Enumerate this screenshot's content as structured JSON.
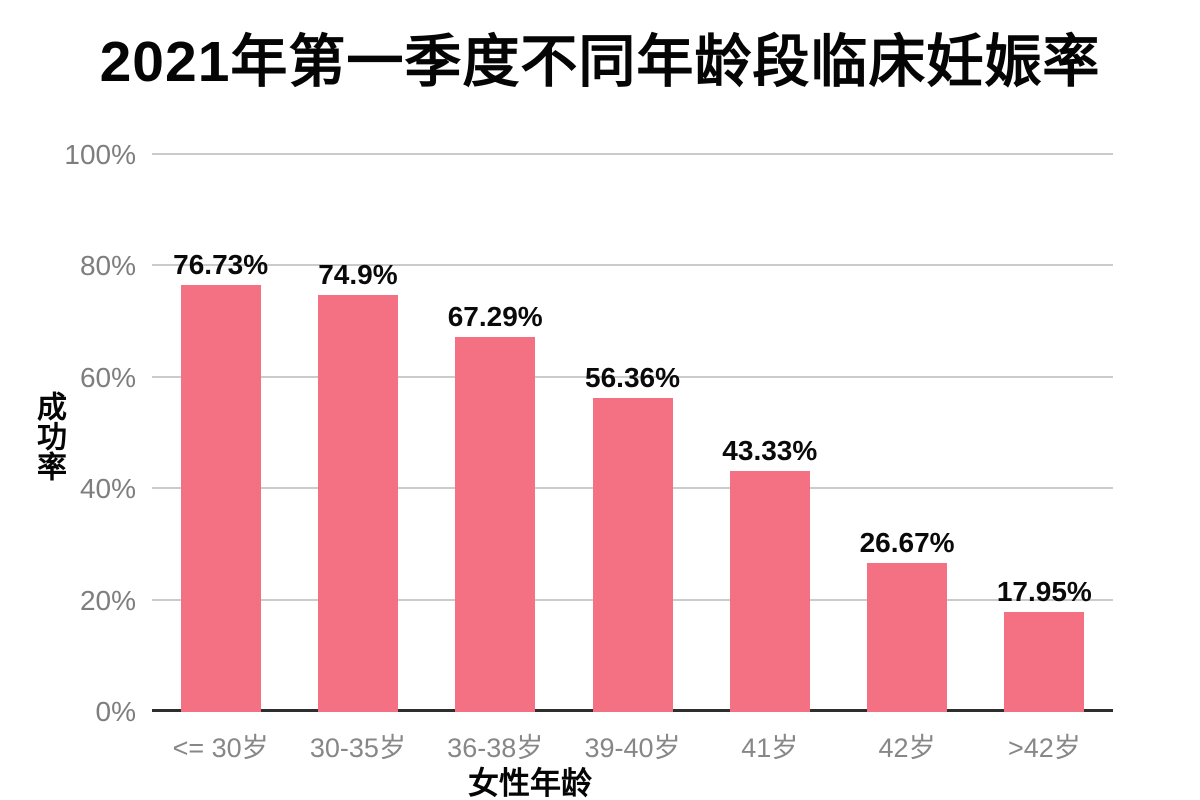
{
  "page": {
    "background_color": "#ffffff"
  },
  "chart_data": {
    "type": "bar",
    "title": "2021年第一季度不同年龄段临床妊娠率",
    "xlabel": "女性年龄",
    "ylabel": "成功率",
    "categories": [
      "<= 30岁",
      "30-35岁",
      "36-38岁",
      "39-40岁",
      "41岁",
      "42岁",
      ">42岁"
    ],
    "values": [
      76.73,
      74.9,
      67.29,
      56.36,
      43.33,
      26.67,
      17.95
    ],
    "value_labels": [
      "76.73%",
      "74.9%",
      "67.29%",
      "56.36%",
      "43.33%",
      "26.67%",
      "17.95%"
    ],
    "ylim": [
      0,
      100
    ],
    "yticks": [
      0,
      20,
      40,
      60,
      80,
      100
    ],
    "ytick_labels": [
      "0%",
      "20%",
      "40%",
      "60%",
      "80%",
      "100%"
    ],
    "grid": true,
    "legend_position": "none",
    "colors": {
      "bar": "#F47183",
      "gridline": "#CBCBCB",
      "axis_baseline": "#2E2E2E",
      "y_tick_label": "#7E7E7E",
      "x_tick_label": "#878787",
      "value_label": "#0A0A0A",
      "title": "#050505"
    }
  }
}
